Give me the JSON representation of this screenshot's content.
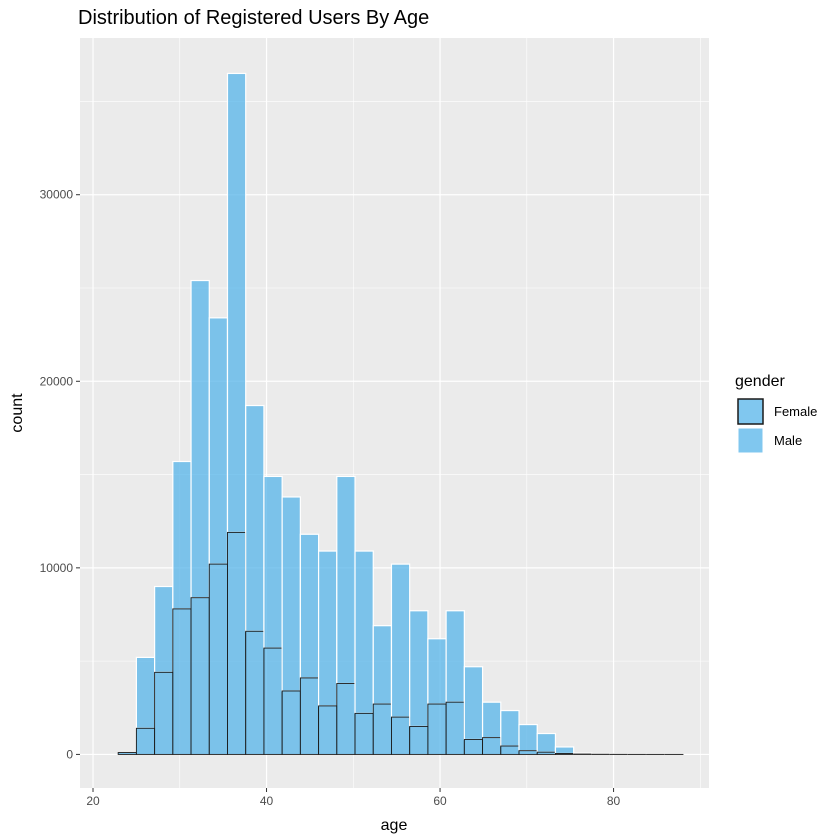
{
  "chart_data": {
    "type": "bar",
    "title": "Distribution of Registered Users By Age",
    "xlabel": "age",
    "ylabel": "count",
    "xlim": [
      18.5,
      91
    ],
    "ylim": [
      -1800,
      38400
    ],
    "x_ticks": [
      20,
      40,
      60,
      80
    ],
    "y_ticks": [
      0,
      10000,
      20000,
      30000
    ],
    "grid": true,
    "legend": {
      "title": "gender",
      "position": "right"
    },
    "colors": {
      "bar_fill": "#56B4E9",
      "female_outline": "#1a1a1a",
      "male_outline": "#ffffff",
      "panel": "#ebebeb",
      "grid": "#ffffff"
    },
    "bin_width": 2.1,
    "bins_start": [
      22.9,
      25.0,
      27.1,
      29.2,
      31.3,
      33.4,
      35.5,
      37.6,
      39.7,
      41.8,
      43.9,
      46.0,
      48.1,
      50.2,
      52.3,
      54.4,
      56.5,
      58.6,
      60.7,
      62.8,
      64.9,
      67.0,
      69.1,
      71.2,
      73.3,
      75.4,
      77.5,
      79.6,
      81.7,
      83.8,
      85.9
    ],
    "series": [
      {
        "name": "Female",
        "values": [
          100,
          1400,
          4400,
          7800,
          8400,
          10200,
          11900,
          6600,
          5700,
          3400,
          4100,
          2600,
          3800,
          2200,
          2700,
          2000,
          1500,
          2700,
          2800,
          800,
          900,
          450,
          200,
          120,
          50,
          20,
          10,
          5,
          3,
          2,
          2
        ]
      },
      {
        "name": "Male",
        "values": [
          0,
          3800,
          4600,
          7900,
          17000,
          13200,
          24600,
          12100,
          9200,
          10400,
          7700,
          8300,
          11100,
          8700,
          4200,
          8200,
          6200,
          3500,
          4900,
          3900,
          1900,
          1900,
          1400,
          1000,
          350,
          50,
          40,
          25,
          20,
          15,
          10
        ]
      }
    ]
  }
}
